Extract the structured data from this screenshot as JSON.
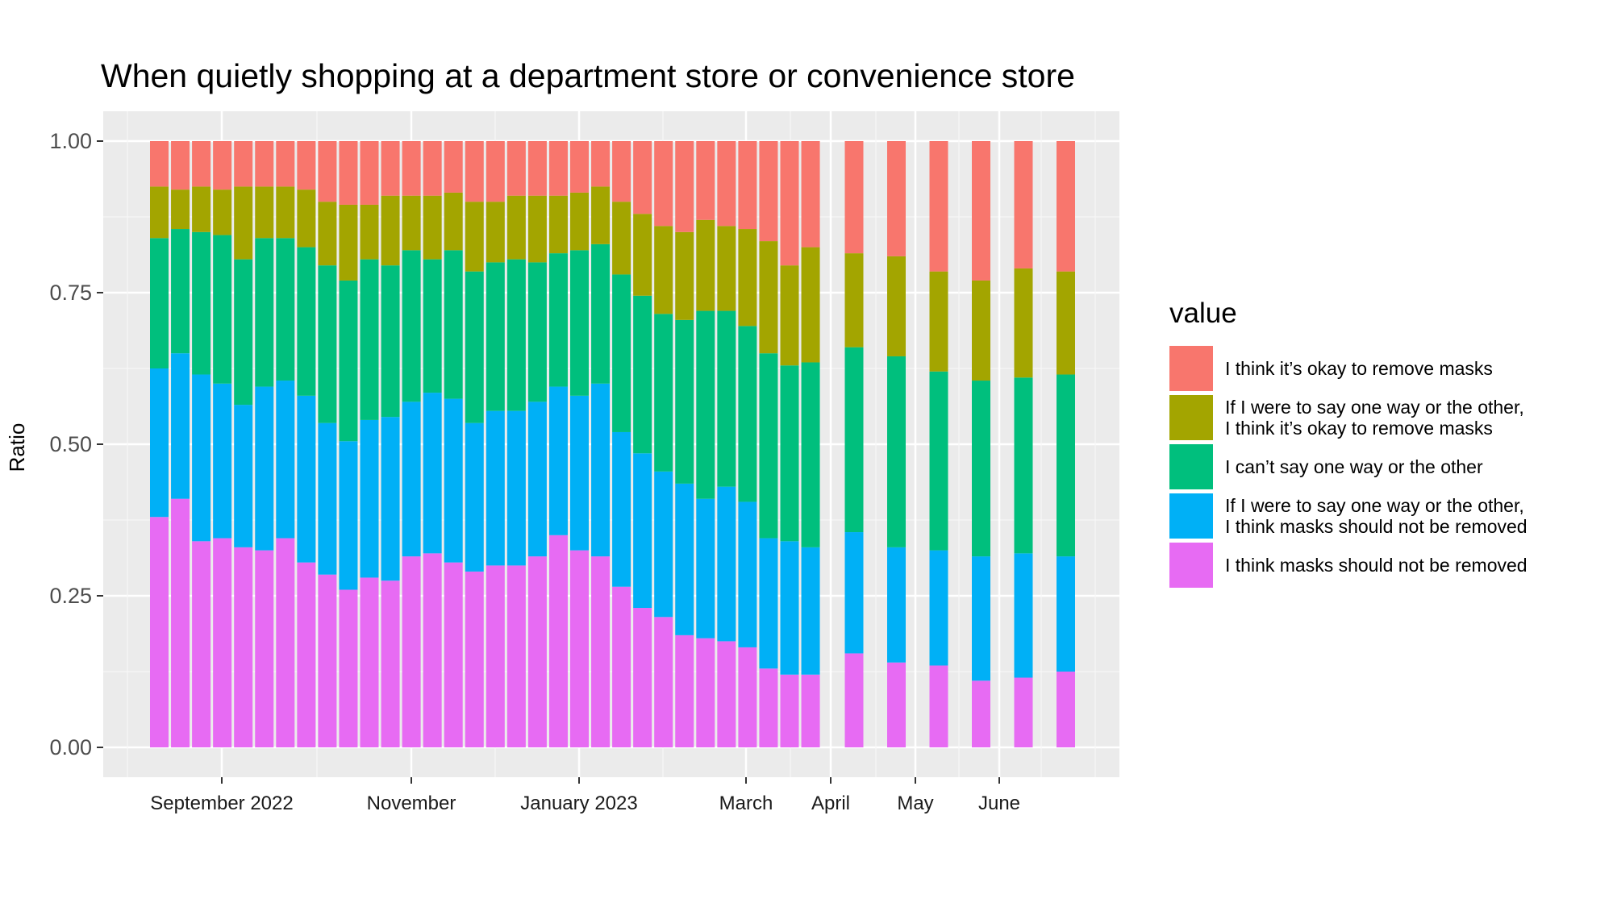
{
  "chart_data": {
    "type": "bar",
    "stacked": true,
    "title": "When quietly shopping at a department store or convenience store",
    "xlabel": "",
    "ylabel": "Ratio",
    "ylim": [
      0,
      1
    ],
    "y_ticks": [
      "0.00",
      "0.25",
      "0.50",
      "0.75",
      "1.00"
    ],
    "x_ticks": [
      "September 2022",
      "November",
      "January 2023",
      "March",
      "April",
      "May",
      "June"
    ],
    "grid": true,
    "legend_position": "right",
    "legend_title": "value",
    "series": [
      {
        "name": "I think masks should not be removed",
        "color": "#e76bf3",
        "values": [
          0.38,
          0.41,
          0.34,
          0.345,
          0.33,
          0.325,
          0.345,
          0.305,
          0.285,
          0.26,
          0.28,
          0.275,
          0.315,
          0.32,
          0.305,
          0.29,
          0.3,
          0.3,
          0.315,
          0.35,
          0.325,
          0.315,
          0.265,
          0.23,
          0.215,
          0.185,
          0.18,
          0.175,
          0.165,
          0.13,
          0.12,
          0.12,
          0.155,
          0.14,
          0.135,
          0.11,
          0.115,
          0.125
        ]
      },
      {
        "name": "If I were to say one way or the other, I think masks should not be removed",
        "color": "#00b0f6",
        "values": [
          0.245,
          0.24,
          0.275,
          0.255,
          0.235,
          0.27,
          0.26,
          0.275,
          0.25,
          0.245,
          0.26,
          0.27,
          0.255,
          0.265,
          0.27,
          0.245,
          0.255,
          0.255,
          0.255,
          0.245,
          0.255,
          0.285,
          0.255,
          0.255,
          0.24,
          0.25,
          0.23,
          0.255,
          0.24,
          0.215,
          0.22,
          0.21,
          0.2,
          0.19,
          0.19,
          0.205,
          0.205,
          0.19
        ]
      },
      {
        "name": "I can’t say one way or the other",
        "color": "#00bf7d",
        "values": [
          0.215,
          0.205,
          0.235,
          0.245,
          0.24,
          0.245,
          0.235,
          0.245,
          0.26,
          0.265,
          0.265,
          0.25,
          0.25,
          0.22,
          0.245,
          0.25,
          0.245,
          0.25,
          0.23,
          0.22,
          0.24,
          0.23,
          0.26,
          0.26,
          0.26,
          0.27,
          0.31,
          0.29,
          0.29,
          0.305,
          0.29,
          0.305,
          0.305,
          0.315,
          0.295,
          0.29,
          0.29,
          0.3
        ]
      },
      {
        "name": "If I were to say one way or the other, I think it’s okay to remove  masks",
        "color": "#a3a500",
        "values": [
          0.085,
          0.065,
          0.075,
          0.075,
          0.12,
          0.085,
          0.085,
          0.095,
          0.105,
          0.125,
          0.09,
          0.115,
          0.09,
          0.105,
          0.095,
          0.115,
          0.1,
          0.105,
          0.11,
          0.095,
          0.095,
          0.095,
          0.12,
          0.135,
          0.145,
          0.145,
          0.15,
          0.14,
          0.16,
          0.185,
          0.165,
          0.19,
          0.155,
          0.165,
          0.165,
          0.165,
          0.18,
          0.17
        ]
      },
      {
        "name": "I think it’s okay to remove masks",
        "color": "#f8766d",
        "values": [
          0.075,
          0.08,
          0.075,
          0.08,
          0.075,
          0.075,
          0.075,
          0.08,
          0.1,
          0.105,
          0.105,
          0.09,
          0.09,
          0.09,
          0.085,
          0.1,
          0.1,
          0.09,
          0.09,
          0.09,
          0.085,
          0.075,
          0.1,
          0.12,
          0.14,
          0.15,
          0.13,
          0.14,
          0.145,
          0.165,
          0.205,
          0.175,
          0.185,
          0.19,
          0.215,
          0.23,
          0.21,
          0.215
        ]
      }
    ]
  }
}
